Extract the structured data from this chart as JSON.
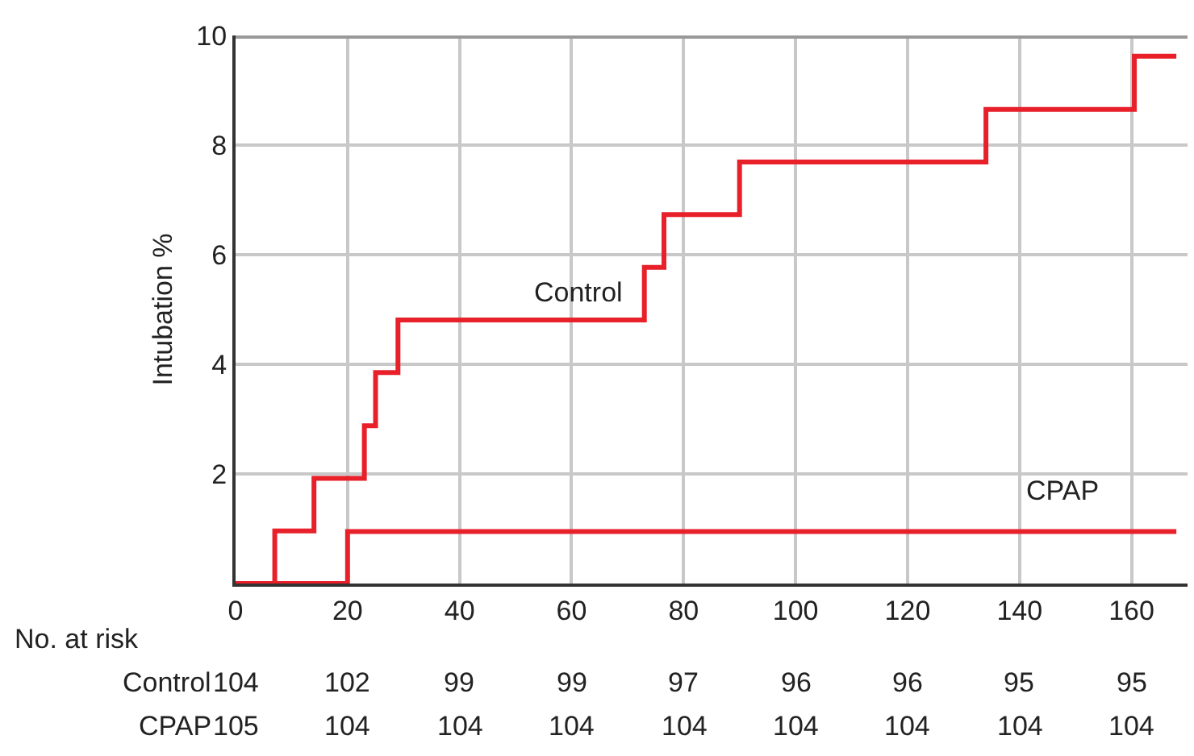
{
  "chart_data": {
    "type": "step",
    "ylabel": "Intubation %",
    "series": [
      {
        "name": "Control",
        "color": "#e8202a",
        "x": [
          0,
          7,
          14,
          23,
          25,
          29,
          73,
          76.5,
          90,
          134,
          160.5,
          168
        ],
        "values": [
          0,
          0.96,
          1.92,
          2.88,
          3.85,
          4.81,
          5.77,
          6.73,
          7.69,
          8.65,
          9.62,
          9.62
        ]
      },
      {
        "name": "CPAP",
        "color": "#e8202a",
        "x": [
          0,
          20,
          168
        ],
        "values": [
          0,
          0.95,
          0.95
        ]
      }
    ],
    "xlim": [
      0,
      170
    ],
    "xticks": [
      0,
      20,
      40,
      60,
      80,
      100,
      120,
      140,
      160
    ],
    "ylim": [
      0,
      10
    ],
    "yticks": [
      2,
      4,
      6,
      8,
      10
    ],
    "grid": true,
    "legend": false,
    "annotations": [
      "No. at risk",
      "Control",
      "104",
      "102",
      "99",
      "99",
      "97",
      "96",
      "96",
      "95",
      "95",
      "CPAP",
      "105",
      "104",
      "104",
      "104",
      "104",
      "104",
      "104",
      "104",
      "104"
    ]
  }
}
